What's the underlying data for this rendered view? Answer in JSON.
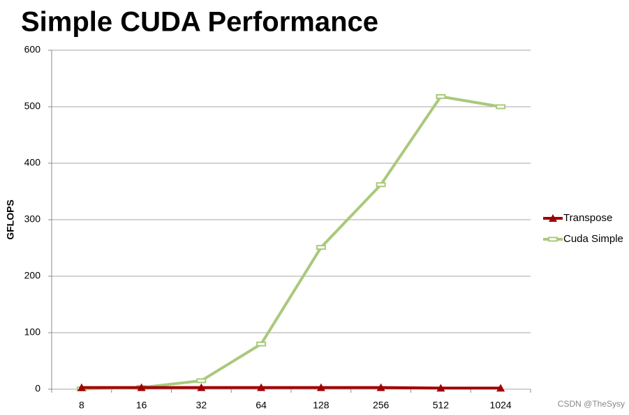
{
  "chart_data": {
    "type": "line",
    "title": "Simple CUDA Performance",
    "y_label": "GFLOPS",
    "categories": [
      "8",
      "16",
      "32",
      "64",
      "128",
      "256",
      "512",
      "1024"
    ],
    "series": [
      {
        "name": "Transpose",
        "color": "#a00000",
        "marker": "triangle",
        "values": [
          3,
          3,
          3,
          3,
          3,
          3,
          2,
          2
        ]
      },
      {
        "name": "Cuda Simple",
        "color": "#a9c97c",
        "marker": "dash",
        "values": [
          0.5,
          3,
          15,
          80,
          251,
          362,
          518,
          500
        ]
      }
    ],
    "ylim": [
      0,
      600
    ],
    "yticks": [
      0,
      100,
      200,
      300,
      400,
      500,
      600
    ],
    "grid": true,
    "legend": "right",
    "watermark": "CSDN @TheSysy"
  }
}
